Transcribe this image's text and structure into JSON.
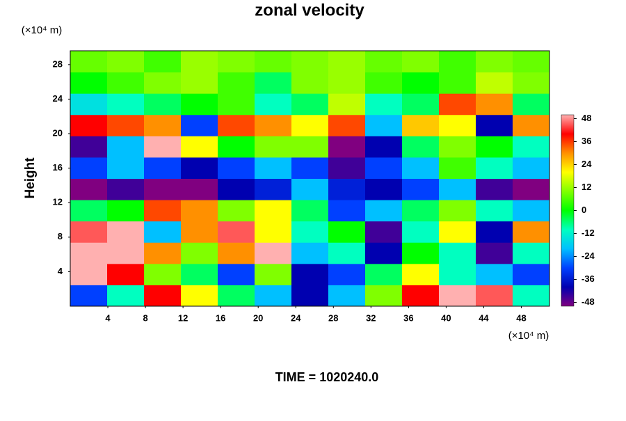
{
  "chart_data": {
    "type": "heatmap",
    "title": "zonal velocity",
    "y_label": "Height",
    "x_unit": "(×10⁴ m)",
    "y_unit": "(×10⁴ m)",
    "footer": "TIME = 1020240.0",
    "xlim": [
      0,
      51
    ],
    "ylim": [
      0,
      29.6
    ],
    "zlim": [
      -50,
      50
    ],
    "xticks": [
      4,
      8,
      12,
      16,
      20,
      24,
      28,
      32,
      36,
      40,
      44,
      48
    ],
    "yticks": [
      4,
      8,
      12,
      16,
      20,
      24,
      28
    ],
    "zticks": [
      -48,
      -36,
      -24,
      -12,
      0,
      12,
      24,
      36,
      48
    ],
    "colormap": [
      "#800080",
      "#0000b0",
      "#0040ff",
      "#00c0ff",
      "#00ffc0",
      "#00ff00",
      "#80ff00",
      "#ffff00",
      "#ff9000",
      "#ff0000",
      "#ffb0b0"
    ],
    "z": [
      [
        -30,
        -10,
        40,
        20,
        -5,
        -20,
        -40,
        -20,
        10,
        40,
        50,
        45,
        -10
      ],
      [
        50,
        40,
        10,
        -5,
        -30,
        10,
        -40,
        -30,
        -5,
        20,
        -10,
        -20,
        -30
      ],
      [
        50,
        50,
        30,
        10,
        30,
        50,
        -20,
        -10,
        -40,
        0,
        -10,
        -45,
        -10
      ],
      [
        45,
        50,
        -20,
        30,
        45,
        20,
        -10,
        0,
        -45,
        -10,
        20,
        -40,
        30
      ],
      [
        -5,
        0,
        35,
        30,
        10,
        20,
        -5,
        -30,
        -20,
        -5,
        10,
        -10,
        -20
      ],
      [
        -50,
        -45,
        -50,
        -50,
        -40,
        -35,
        -20,
        -35,
        -40,
        -30,
        -20,
        -45,
        -50
      ],
      [
        -30,
        -20,
        -30,
        -40,
        -30,
        -20,
        -30,
        -45,
        -30,
        -20,
        5,
        -10,
        -20
      ],
      [
        -45,
        -20,
        50,
        20,
        0,
        10,
        10,
        -50,
        -40,
        -5,
        10,
        0,
        -10
      ],
      [
        40,
        35,
        30,
        -30,
        35,
        30,
        20,
        35,
        -20,
        25,
        20,
        -40,
        30
      ],
      [
        -15,
        -10,
        -5,
        0,
        5,
        -10,
        -5,
        15,
        -10,
        -5,
        35,
        30,
        -5
      ],
      [
        0,
        5,
        10,
        12,
        5,
        -5,
        10,
        12,
        5,
        0,
        5,
        15,
        10
      ],
      [
        8,
        10,
        5,
        12,
        10,
        8,
        10,
        12,
        8,
        10,
        5,
        10,
        8
      ]
    ]
  }
}
